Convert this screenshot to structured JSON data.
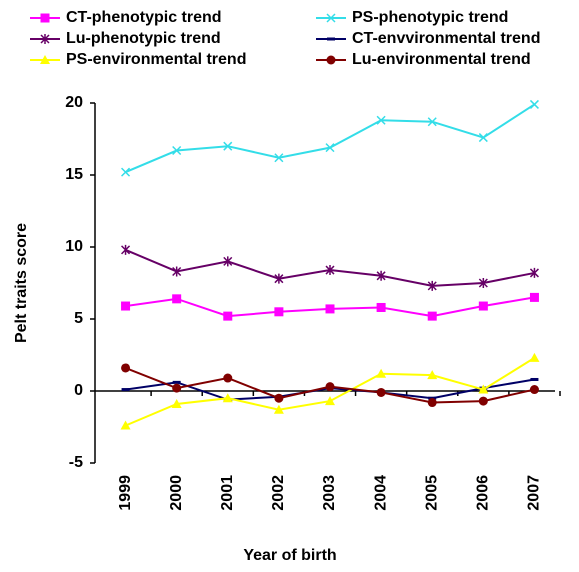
{
  "chart_data": {
    "type": "line",
    "categories": [
      "1999",
      "2000",
      "2001",
      "2002",
      "2003",
      "2004",
      "2005",
      "2006",
      "2007"
    ],
    "series": [
      {
        "name": "CT-phenotypic trend",
        "color": "#ff00ff",
        "marker": "square",
        "values": [
          5.9,
          6.4,
          5.2,
          5.5,
          5.7,
          5.8,
          5.2,
          5.9,
          6.5
        ]
      },
      {
        "name": "PS-phenotypic trend",
        "color": "#33dde8",
        "marker": "x",
        "values": [
          15.2,
          16.7,
          17.0,
          16.2,
          16.9,
          18.8,
          18.7,
          17.6,
          19.9
        ]
      },
      {
        "name": "Lu-phenotypic trend",
        "color": "#660066",
        "marker": "star",
        "values": [
          9.8,
          8.3,
          9.0,
          7.8,
          8.4,
          8.0,
          7.3,
          7.5,
          8.2
        ]
      },
      {
        "name": "CT-envvironmental trend",
        "color": "#000066",
        "marker": "dash",
        "values": [
          0.1,
          0.6,
          -0.6,
          -0.4,
          0.2,
          -0.1,
          -0.5,
          0.2,
          0.8
        ]
      },
      {
        "name": "PS-environmental trend",
        "color": "#ffff00",
        "marker": "triangle",
        "values": [
          -2.4,
          -0.9,
          -0.5,
          -1.3,
          -0.7,
          1.2,
          1.1,
          0.1,
          2.3
        ]
      },
      {
        "name": "Lu-environmental trend",
        "color": "#800000",
        "marker": "circle",
        "values": [
          1.6,
          0.2,
          0.9,
          -0.5,
          0.3,
          -0.1,
          -0.8,
          -0.7,
          0.1
        ]
      }
    ],
    "x_label": "Year of birth",
    "y_label": "Pelt traits score",
    "ylim": [
      -5,
      20
    ],
    "yticks": [
      -5,
      0,
      5,
      10,
      15,
      20
    ],
    "grid": false
  }
}
